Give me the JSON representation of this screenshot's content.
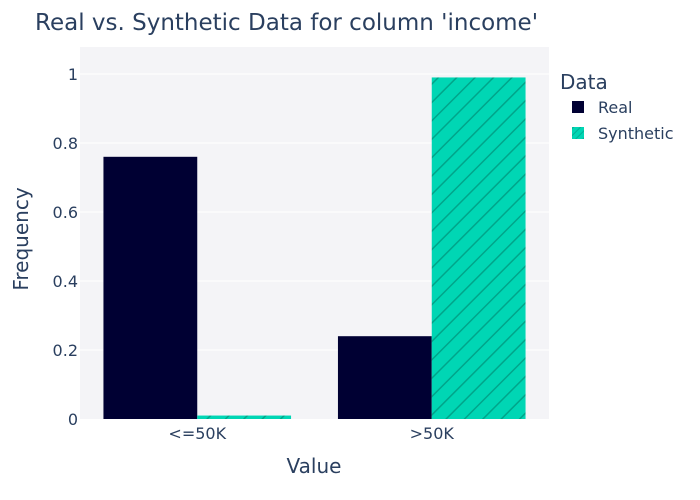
{
  "chart_data": {
    "type": "bar",
    "title": "Real vs. Synthetic Data for column 'income'",
    "xlabel": "Value",
    "ylabel": "Frequency",
    "categories": [
      "<=50K",
      ">50K"
    ],
    "ylim": [
      0,
      1.0
    ],
    "yticks": [
      0,
      0.2,
      0.4,
      0.6,
      0.8,
      1
    ],
    "ytick_labels": [
      "0",
      "0.2",
      "0.4",
      "0.6",
      "0.8",
      "1"
    ],
    "grid": true,
    "legend_title": "Data",
    "legend_position": "right",
    "series": [
      {
        "name": "Real",
        "values": [
          0.76,
          0.24
        ],
        "color": "#000033",
        "pattern": "solid"
      },
      {
        "name": "Synthetic",
        "values": [
          0.01,
          0.99
        ],
        "color": "#00d6b4",
        "pattern": "diagonal-hatch"
      }
    ]
  },
  "colors": {
    "plot_background": "#f4f4f7",
    "gridline": "#ffffff",
    "text": "#2a3f5f",
    "hatch": "#00a58a"
  }
}
